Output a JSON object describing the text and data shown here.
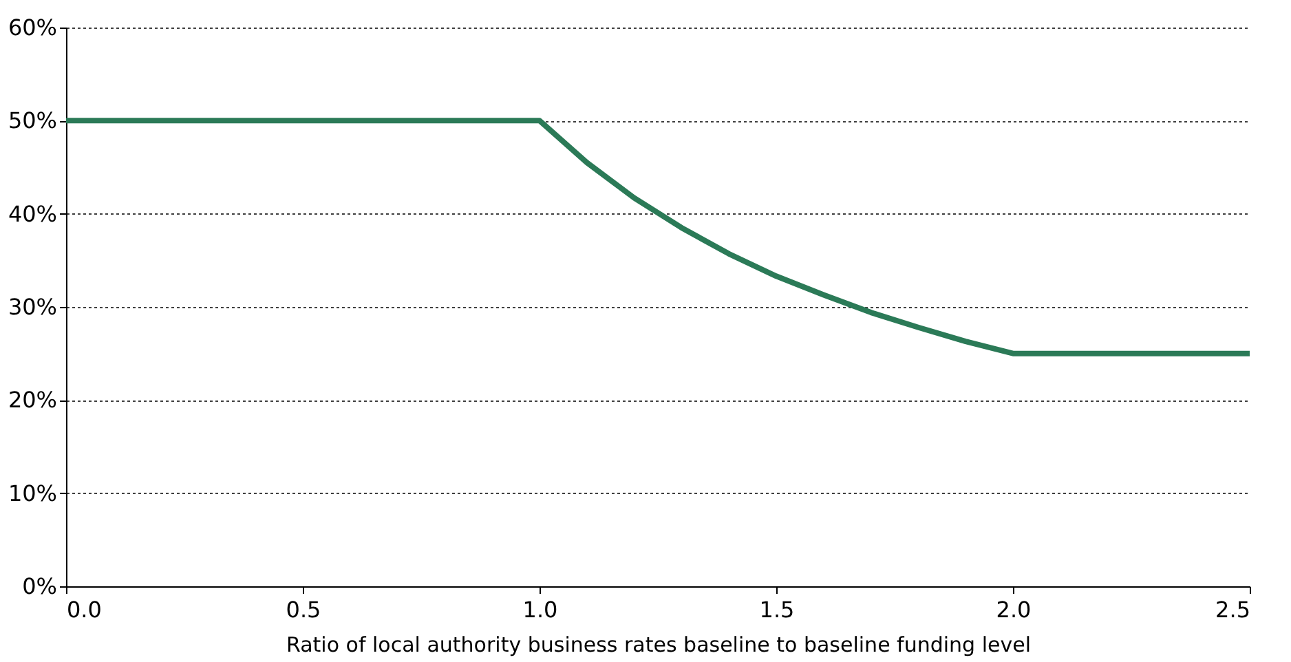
{
  "chart_data": {
    "type": "line",
    "xlabel": "Ratio of local authority business rates baseline to baseline funding level",
    "x": [
      0,
      1.0,
      1.1,
      1.2,
      1.3,
      1.4,
      1.5,
      1.6,
      1.7,
      1.8,
      1.9,
      2.0,
      2.5
    ],
    "series": [
      {
        "color": "#2b7a57",
        "values": [
          50,
          50,
          45.5,
          41.7,
          38.5,
          35.7,
          33.3,
          31.3,
          29.4,
          27.8,
          26.3,
          25,
          25
        ]
      }
    ],
    "xlim": [
      0,
      2.5
    ],
    "ylim": [
      0,
      60
    ],
    "xticks": [
      {
        "value": 0,
        "label": "0.0"
      },
      {
        "value": 0.5,
        "label": "0.5"
      },
      {
        "value": 1,
        "label": "1.0"
      },
      {
        "value": 1.5,
        "label": "1.5"
      },
      {
        "value": 2,
        "label": "2.0"
      },
      {
        "value": 2.5,
        "label": "2.5"
      }
    ],
    "yticks": [
      {
        "value": 0,
        "label": "0%"
      },
      {
        "value": 10,
        "label": "10%"
      },
      {
        "value": 20,
        "label": "20%"
      },
      {
        "value": 30,
        "label": "30%"
      },
      {
        "value": 40,
        "label": "40%"
      },
      {
        "value": 50,
        "label": "50%"
      },
      {
        "value": 60,
        "label": "60%"
      }
    ],
    "grid": "y",
    "marker": "none",
    "line_style": "solid"
  }
}
